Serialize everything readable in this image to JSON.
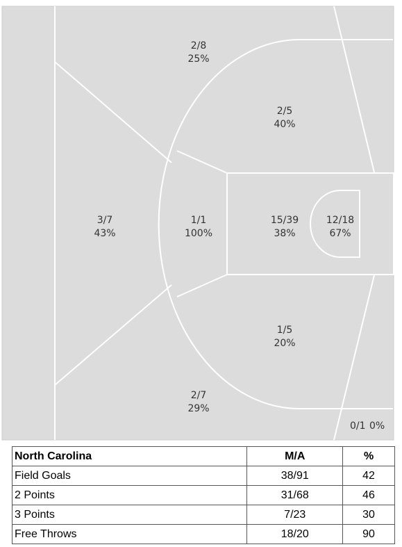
{
  "court": {
    "zones": [
      {
        "id": "top-corner-3",
        "made_att": "2/8",
        "pct": "25%"
      },
      {
        "id": "top-mid-range",
        "made_att": "2/5",
        "pct": "40%"
      },
      {
        "id": "top-of-key-3",
        "made_att": "3/7",
        "pct": "43%"
      },
      {
        "id": "top-of-key-mid",
        "made_att": "1/1",
        "pct": "100%"
      },
      {
        "id": "paint",
        "made_att": "15/39",
        "pct": "38%"
      },
      {
        "id": "restricted-area",
        "made_att": "12/18",
        "pct": "67%"
      },
      {
        "id": "bottom-mid-range",
        "made_att": "1/5",
        "pct": "20%"
      },
      {
        "id": "bottom-corner-3",
        "made_att": "2/7",
        "pct": "29%"
      },
      {
        "id": "bottom-baseline",
        "made_att": "0/1",
        "pct": "0%"
      }
    ]
  },
  "table": {
    "team": "North Carolina",
    "col_ma": "M/A",
    "col_pct": "%",
    "rows": [
      {
        "label": "Field Goals",
        "ma": "38/91",
        "pct": "42"
      },
      {
        "label": "2 Points",
        "ma": "31/68",
        "pct": "46"
      },
      {
        "label": "3 Points",
        "ma": "7/23",
        "pct": "30"
      },
      {
        "label": "Free Throws",
        "ma": "18/20",
        "pct": "90"
      }
    ]
  }
}
